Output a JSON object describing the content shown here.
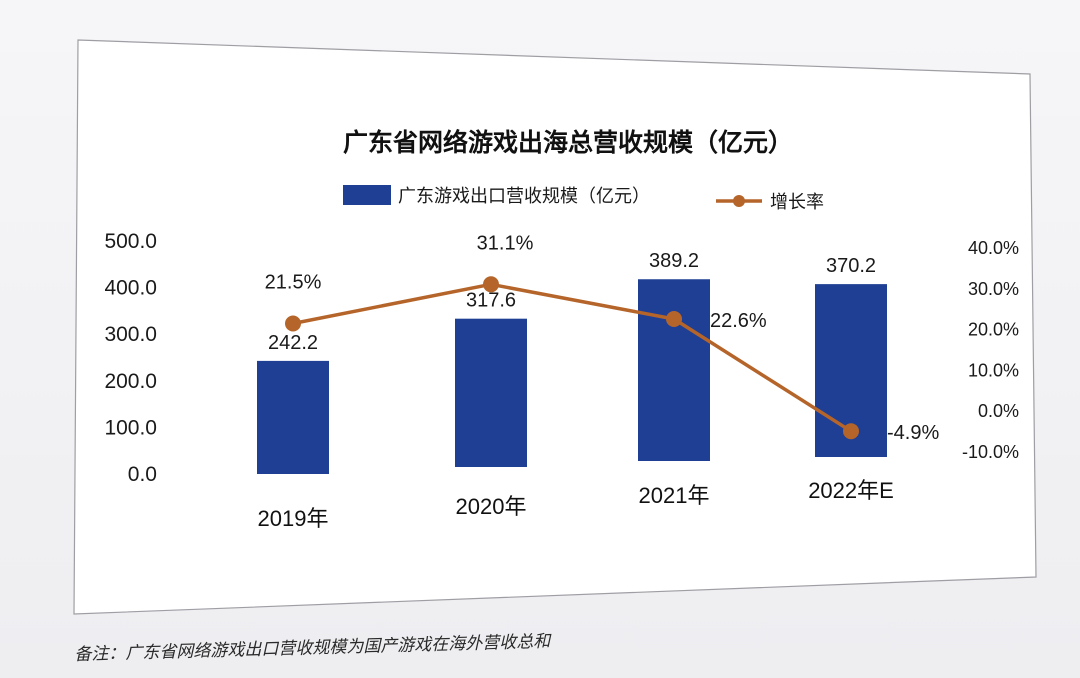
{
  "chart_data": {
    "type": "bar",
    "title": "广东省网络游戏出海总营收规模（亿元）",
    "categories": [
      "2019年",
      "2020年",
      "2021年",
      "2022年E"
    ],
    "series": [
      {
        "name": "广东游戏出口营收规模（亿元）",
        "kind": "bar",
        "axis": "left",
        "values": [
          242.2,
          317.6,
          389.2,
          370.2
        ],
        "labels": [
          "242.2",
          "317.6",
          "389.2",
          "370.2"
        ],
        "color": "#1e3f94"
      },
      {
        "name": "增长率",
        "kind": "line",
        "axis": "right",
        "values": [
          21.5,
          31.1,
          22.6,
          -4.9
        ],
        "labels": [
          "21.5%",
          "31.1%",
          "22.6%",
          "-4.9%"
        ],
        "color": "#b5652a"
      }
    ],
    "y_left": {
      "ylim": [
        0,
        500
      ],
      "ticks": [
        "0.0",
        "100.0",
        "200.0",
        "300.0",
        "400.0",
        "500.0"
      ]
    },
    "y_right": {
      "ylim": [
        -10,
        40
      ],
      "ticks": [
        "-10.0%",
        "0.0%",
        "10.0%",
        "20.0%",
        "30.0%",
        "40.0%"
      ]
    },
    "grid": false,
    "legend_position": "top-center"
  },
  "footnote": "备注：广东省网络游戏出口营收规模为国产游戏在海外营收总和"
}
